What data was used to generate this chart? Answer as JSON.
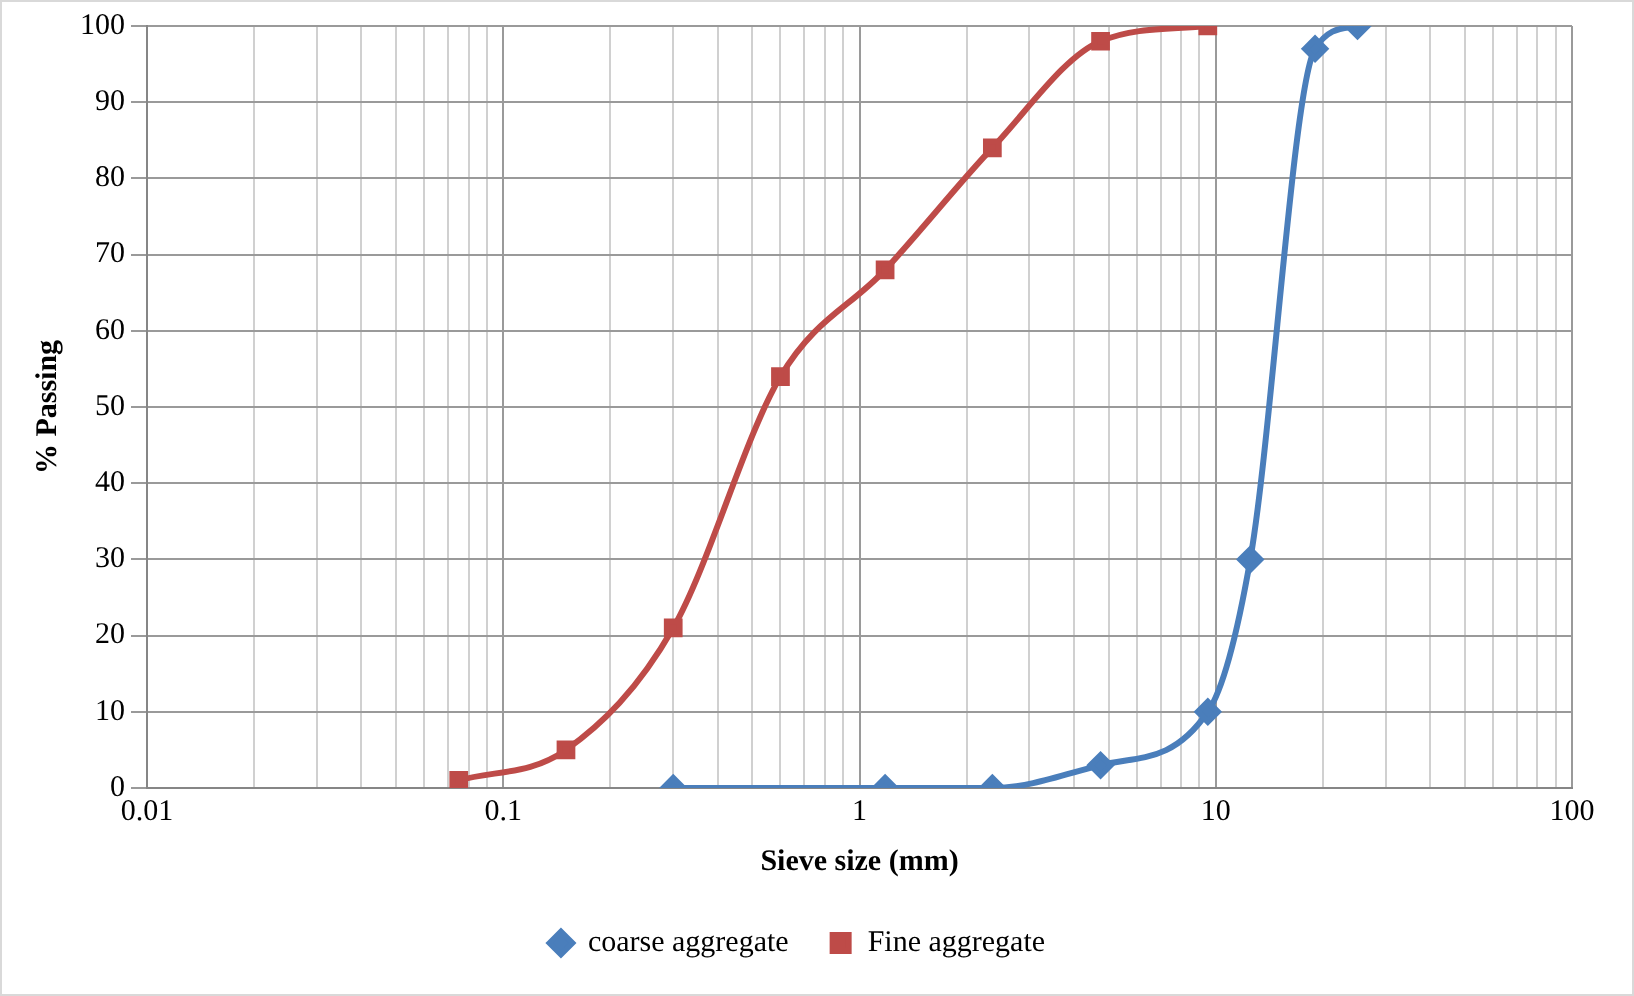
{
  "chart_data": {
    "type": "line",
    "xlabel": "Sieve size (mm)",
    "ylabel": "% Passing",
    "series": [
      {
        "name": "coarse aggregate",
        "color": "#4a7ebb",
        "marker": "diamond",
        "x": [
          0.3,
          1.18,
          2.36,
          4.75,
          9.5,
          12.5,
          19,
          25
        ],
        "values": [
          0,
          0,
          0,
          3,
          10,
          30,
          97,
          100
        ]
      },
      {
        "name": "Fine aggregate",
        "color": "#be4b48",
        "marker": "square",
        "x": [
          0.075,
          0.15,
          0.3,
          0.6,
          1.18,
          2.36,
          4.75,
          9.5
        ],
        "values": [
          1,
          5,
          21,
          54,
          68,
          84,
          98,
          100
        ]
      }
    ],
    "log": "x",
    "xlim": [
      0.01,
      100
    ],
    "ylim": [
      0,
      100
    ],
    "xticks": [
      0.01,
      {
        "value": 0.02,
        "label": null
      },
      {
        "value": 0.03,
        "label": null
      },
      {
        "value": 0.04,
        "label": null
      },
      {
        "value": 0.05,
        "label": null
      },
      {
        "value": 0.06,
        "label": null
      },
      {
        "value": 0.07,
        "label": null
      },
      {
        "value": 0.08,
        "label": null
      },
      {
        "value": 0.09,
        "label": null
      },
      0.1,
      {
        "value": 0.2,
        "label": null
      },
      {
        "value": 0.3,
        "label": null
      },
      {
        "value": 0.4,
        "label": null
      },
      {
        "value": 0.5,
        "label": null
      },
      {
        "value": 0.6,
        "label": null
      },
      {
        "value": 0.7,
        "label": null
      },
      {
        "value": 0.8,
        "label": null
      },
      {
        "value": 0.9,
        "label": null
      },
      1,
      {
        "value": 2,
        "label": null
      },
      {
        "value": 3,
        "label": null
      },
      {
        "value": 4,
        "label": null
      },
      {
        "value": 5,
        "label": null
      },
      {
        "value": 6,
        "label": null
      },
      {
        "value": 7,
        "label": null
      },
      {
        "value": 8,
        "label": null
      },
      {
        "value": 9,
        "label": null
      },
      10,
      {
        "value": 20,
        "label": null
      },
      {
        "value": 30,
        "label": null
      },
      {
        "value": 40,
        "label": null
      },
      {
        "value": 50,
        "label": null
      },
      {
        "value": 60,
        "label": null
      },
      {
        "value": 70,
        "label": null
      },
      {
        "value": 80,
        "label": null
      },
      {
        "value": 90,
        "label": null
      },
      100
    ],
    "yticks": [
      0,
      10,
      20,
      30,
      40,
      50,
      60,
      70,
      80,
      90,
      100
    ],
    "grid": true,
    "legend": "bottom",
    "line_style": "solid"
  }
}
